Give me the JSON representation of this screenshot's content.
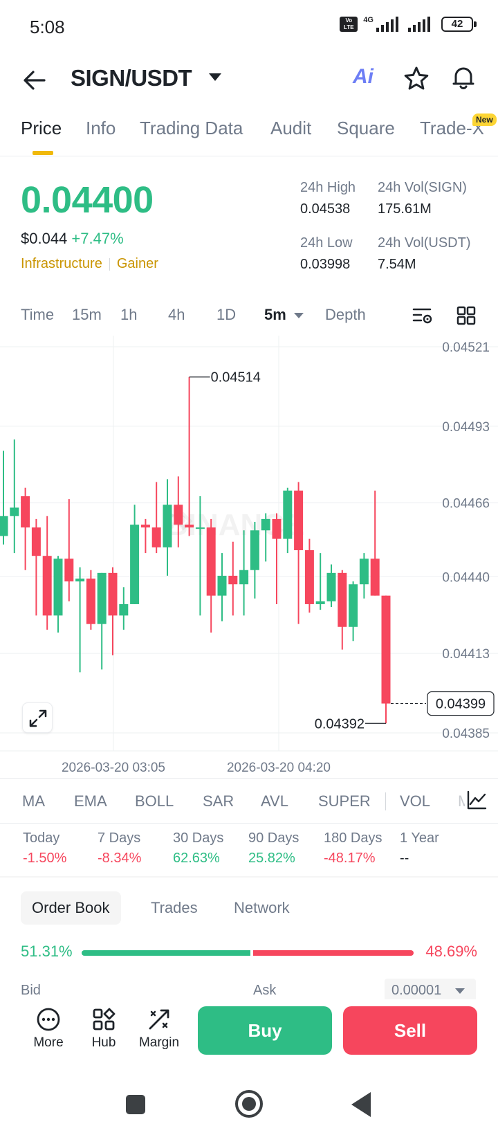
{
  "status_bar": {
    "time": "5:08",
    "network": "4G",
    "battery": "42"
  },
  "header": {
    "pair": "SIGN/USDT",
    "ai_label": "Ai"
  },
  "tabs": [
    {
      "label": "Price",
      "active": true
    },
    {
      "label": "Info"
    },
    {
      "label": "Trading Data"
    },
    {
      "label": "Audit"
    },
    {
      "label": "Square"
    },
    {
      "label": "Trade-X"
    }
  ],
  "new_badge": "New",
  "price": {
    "last": "0.04400",
    "fiat": "$0.044",
    "change": "+7.47%",
    "tag1": "Infrastructure",
    "tag2": "Gainer"
  },
  "stats": {
    "high_label": "24h High",
    "high_value": "0.04538",
    "vol_sign_label": "24h Vol(SIGN)",
    "vol_sign_value": "175.61M",
    "low_label": "24h Low",
    "low_value": "0.03998",
    "vol_usdt_label": "24h Vol(USDT)",
    "vol_usdt_value": "7.54M"
  },
  "intervals": [
    "Time",
    "15m",
    "1h",
    "4h",
    "1D",
    "5m",
    "Depth"
  ],
  "chart_data": {
    "type": "candlestick",
    "y_axis_ticks": [
      "0.04521",
      "0.04493",
      "0.04466",
      "0.04440",
      "0.04413",
      "0.04385"
    ],
    "ylim": [
      0.04385,
      0.04521
    ],
    "x_axis_ticks": [
      "2026-03-20 03:05",
      "2026-03-20 04:20"
    ],
    "high_label": "0.04514",
    "low_label": "0.04392",
    "current_price_label": "0.04399",
    "watermark": "BINANCE",
    "candles": [
      {
        "o": 0.04458,
        "h": 0.04488,
        "l": 0.04455,
        "c": 0.04465
      },
      {
        "o": 0.04465,
        "h": 0.04492,
        "l": 0.04452,
        "c": 0.04468
      },
      {
        "o": 0.04472,
        "h": 0.04475,
        "l": 0.04446,
        "c": 0.04461
      },
      {
        "o": 0.04461,
        "h": 0.04464,
        "l": 0.0443,
        "c": 0.04451
      },
      {
        "o": 0.04451,
        "h": 0.04465,
        "l": 0.04425,
        "c": 0.0443
      },
      {
        "o": 0.0443,
        "h": 0.04451,
        "l": 0.04424,
        "c": 0.0445
      },
      {
        "o": 0.0445,
        "h": 0.04471,
        "l": 0.04435,
        "c": 0.04442
      },
      {
        "o": 0.04442,
        "h": 0.04447,
        "l": 0.0441,
        "c": 0.04443
      },
      {
        "o": 0.04443,
        "h": 0.04446,
        "l": 0.04425,
        "c": 0.04427
      },
      {
        "o": 0.04427,
        "h": 0.04445,
        "l": 0.04411,
        "c": 0.04445
      },
      {
        "o": 0.04445,
        "h": 0.04447,
        "l": 0.04416,
        "c": 0.0443
      },
      {
        "o": 0.0443,
        "h": 0.0444,
        "l": 0.04425,
        "c": 0.04434
      },
      {
        "o": 0.04434,
        "h": 0.04469,
        "l": 0.04434,
        "c": 0.04462
      },
      {
        "o": 0.04462,
        "h": 0.04464,
        "l": 0.04452,
        "c": 0.04461
      },
      {
        "o": 0.04461,
        "h": 0.04477,
        "l": 0.04452,
        "c": 0.04454
      },
      {
        "o": 0.04454,
        "h": 0.04478,
        "l": 0.04444,
        "c": 0.04469
      },
      {
        "o": 0.04469,
        "h": 0.04479,
        "l": 0.04454,
        "c": 0.04462
      },
      {
        "o": 0.04462,
        "h": 0.04514,
        "l": 0.04458,
        "c": 0.04461
      },
      {
        "o": 0.04461,
        "h": 0.04472,
        "l": 0.0443,
        "c": 0.04461
      },
      {
        "o": 0.04461,
        "h": 0.04464,
        "l": 0.04424,
        "c": 0.04437
      },
      {
        "o": 0.04437,
        "h": 0.04452,
        "l": 0.04428,
        "c": 0.04444
      },
      {
        "o": 0.04444,
        "h": 0.04456,
        "l": 0.0443,
        "c": 0.04441
      },
      {
        "o": 0.04441,
        "h": 0.0446,
        "l": 0.0443,
        "c": 0.04446
      },
      {
        "o": 0.04446,
        "h": 0.04463,
        "l": 0.04436,
        "c": 0.0446
      },
      {
        "o": 0.0446,
        "h": 0.04466,
        "l": 0.04449,
        "c": 0.04464
      },
      {
        "o": 0.04464,
        "h": 0.04466,
        "l": 0.04434,
        "c": 0.04457
      },
      {
        "o": 0.04457,
        "h": 0.04475,
        "l": 0.04452,
        "c": 0.04474
      },
      {
        "o": 0.04474,
        "h": 0.04477,
        "l": 0.04427,
        "c": 0.04453
      },
      {
        "o": 0.04453,
        "h": 0.04457,
        "l": 0.04431,
        "c": 0.04434
      },
      {
        "o": 0.04434,
        "h": 0.04452,
        "l": 0.04432,
        "c": 0.04435
      },
      {
        "o": 0.04435,
        "h": 0.04448,
        "l": 0.04433,
        "c": 0.04445
      },
      {
        "o": 0.04445,
        "h": 0.04446,
        "l": 0.04418,
        "c": 0.04426
      },
      {
        "o": 0.04426,
        "h": 0.04442,
        "l": 0.04421,
        "c": 0.04441
      },
      {
        "o": 0.04441,
        "h": 0.04452,
        "l": 0.04436,
        "c": 0.0445
      },
      {
        "o": 0.0445,
        "h": 0.04474,
        "l": 0.04437,
        "c": 0.04437
      },
      {
        "o": 0.04437,
        "h": 0.04437,
        "l": 0.04392,
        "c": 0.04399
      }
    ]
  },
  "indicators": [
    "MA",
    "EMA",
    "BOLL",
    "SAR",
    "AVL",
    "SUPER",
    "VOL",
    "MACD"
  ],
  "performance": [
    {
      "label": "Today",
      "value": "-1.50%",
      "dir": "neg"
    },
    {
      "label": "7 Days",
      "value": "-8.34%",
      "dir": "neg"
    },
    {
      "label": "30 Days",
      "value": "62.63%",
      "dir": "pos"
    },
    {
      "label": "90 Days",
      "value": "25.82%",
      "dir": "pos"
    },
    {
      "label": "180 Days",
      "value": "-48.17%",
      "dir": "neg"
    },
    {
      "label": "1 Year",
      "value": "--",
      "dir": "neu"
    }
  ],
  "orderbook": {
    "tabs": [
      "Order Book",
      "Trades",
      "Network"
    ],
    "bid_pct": "51.31%",
    "ask_pct": "48.69%",
    "bid_fraction": 0.5131,
    "bid_label": "Bid",
    "ask_label": "Ask",
    "precision": "0.00001"
  },
  "actions": {
    "more": "More",
    "hub": "Hub",
    "margin": "Margin",
    "buy": "Buy",
    "sell": "Sell"
  },
  "colors": {
    "up": "#2ebd85",
    "down": "#f6465d",
    "accent": "#f0b90b",
    "tag": "#c99400"
  }
}
